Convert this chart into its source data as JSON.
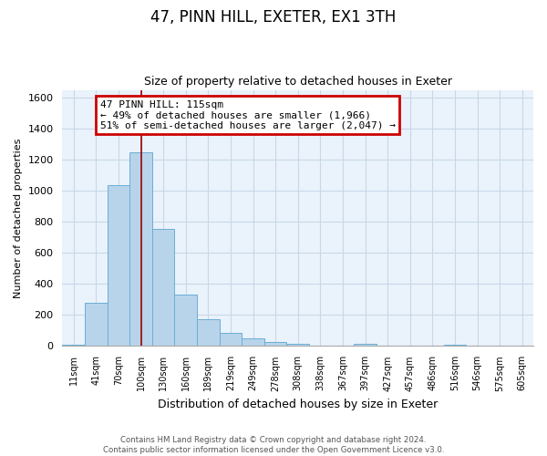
{
  "title": "47, PINN HILL, EXETER, EX1 3TH",
  "subtitle": "Size of property relative to detached houses in Exeter",
  "xlabel": "Distribution of detached houses by size in Exeter",
  "ylabel": "Number of detached properties",
  "footer_line1": "Contains HM Land Registry data © Crown copyright and database right 2024.",
  "footer_line2": "Contains public sector information licensed under the Open Government Licence v3.0.",
  "bar_labels": [
    "11sqm",
    "41sqm",
    "70sqm",
    "100sqm",
    "130sqm",
    "160sqm",
    "189sqm",
    "219sqm",
    "249sqm",
    "278sqm",
    "308sqm",
    "338sqm",
    "367sqm",
    "397sqm",
    "427sqm",
    "457sqm",
    "486sqm",
    "516sqm",
    "546sqm",
    "575sqm",
    "605sqm"
  ],
  "bar_values": [
    10,
    280,
    1035,
    1250,
    755,
    330,
    175,
    85,
    50,
    28,
    15,
    5,
    2,
    15,
    2,
    0,
    0,
    10,
    0,
    0,
    5
  ],
  "bar_color": "#b8d4ea",
  "bar_edge_color": "#6aaed6",
  "ylim": [
    0,
    1650
  ],
  "yticks": [
    0,
    200,
    400,
    600,
    800,
    1000,
    1200,
    1400,
    1600
  ],
  "property_value": 115,
  "property_bin_index": 3,
  "annotation_text_line1": "47 PINN HILL: 115sqm",
  "annotation_text_line2": "← 49% of detached houses are smaller (1,966)",
  "annotation_text_line3": "51% of semi-detached houses are larger (2,047) →",
  "annotation_box_color": "#ffffff",
  "annotation_box_edge": "#cc0000",
  "vline_color": "#990000",
  "grid_color": "#c8d8e8",
  "background_color": "#ffffff",
  "plot_bg_color": "#eaf2fb"
}
